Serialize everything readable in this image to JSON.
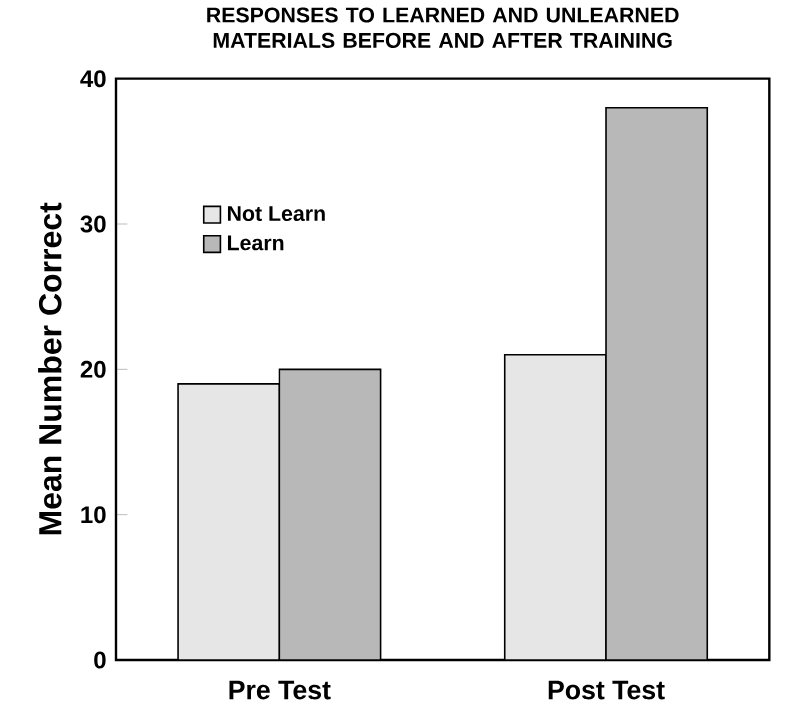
{
  "chart_data": {
    "type": "bar",
    "title": "RESPONSES TO LEARNED AND UNLEARNED MATERIALS BEFORE AND AFTER TRAINING",
    "ylabel": "Mean Number Correct",
    "categories": [
      "Pre Test",
      "Post Test"
    ],
    "series": [
      {
        "name": "Not Learn",
        "color": "#e6e6e6",
        "values": [
          19,
          21
        ]
      },
      {
        "name": "Learn",
        "color": "#b8b8b8",
        "values": [
          20,
          38
        ]
      }
    ],
    "ylim": [
      0,
      40
    ],
    "yticks": [
      0,
      10,
      20,
      30,
      40
    ],
    "legend": "top left"
  }
}
